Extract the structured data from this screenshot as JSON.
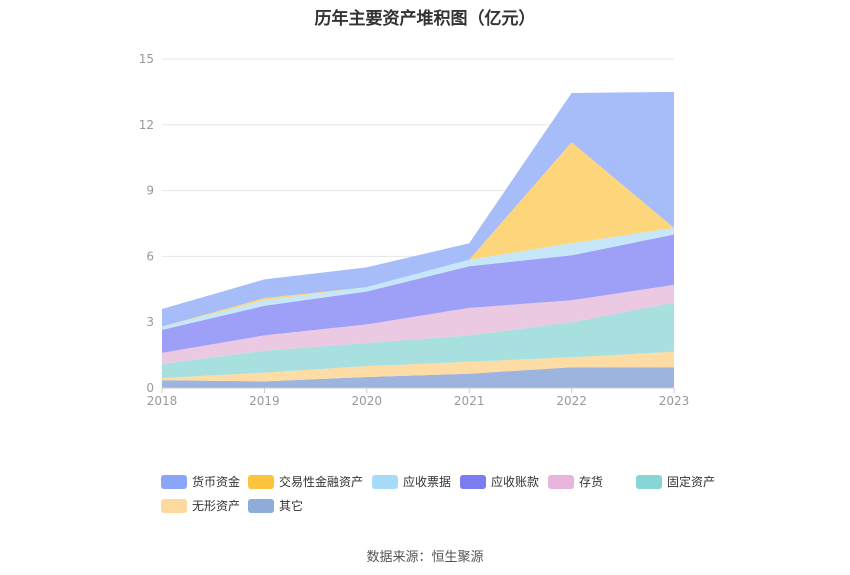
{
  "chart_data": {
    "type": "area",
    "stacked": true,
    "title": "历年主要资产堆积图（亿元）",
    "x": [
      "2018",
      "2019",
      "2020",
      "2021",
      "2022",
      "2023"
    ],
    "ylim": [
      0,
      15
    ],
    "yticks": [
      0,
      3,
      6,
      9,
      12,
      15
    ],
    "grid": true,
    "legend_position": "bottom",
    "series": [
      {
        "name": "其它",
        "color": "#9db4de",
        "values": [
          0.35,
          0.3,
          0.5,
          0.65,
          0.95,
          0.95
        ]
      },
      {
        "name": "无形资产",
        "color": "#fddca6",
        "values": [
          0.1,
          0.4,
          0.5,
          0.55,
          0.45,
          0.7
        ]
      },
      {
        "name": "固定资产",
        "color": "#a8e0df",
        "values": [
          0.65,
          1.0,
          1.05,
          1.2,
          1.6,
          2.25
        ]
      },
      {
        "name": "存货",
        "color": "#ebc9e3",
        "values": [
          0.5,
          0.7,
          0.85,
          1.25,
          1.0,
          0.8
        ]
      },
      {
        "name": "应收账款",
        "color": "#9e9ff6",
        "values": [
          1.05,
          1.35,
          1.5,
          1.9,
          2.05,
          2.3
        ]
      },
      {
        "name": "应收票据",
        "color": "#c6e7f9",
        "values": [
          0.15,
          0.25,
          0.2,
          0.3,
          0.55,
          0.3
        ]
      },
      {
        "name": "交易性金融资产",
        "color": "#fdd67c",
        "values": [
          0.0,
          0.1,
          0.0,
          0.0,
          4.6,
          0.0
        ]
      },
      {
        "name": "货币资金",
        "color": "#a7bdfa",
        "values": [
          0.8,
          0.85,
          0.9,
          0.75,
          2.25,
          6.2
        ]
      }
    ],
    "legend_colors": {
      "货币资金": "#8aa6f8",
      "交易性金融资产": "#fcc43d",
      "应收票据": "#a6dcf8",
      "应收账款": "#7b7cf0",
      "存货": "#e8b5dd",
      "固定资产": "#87d6d5",
      "无形资产": "#fdd99d",
      "其它": "#8fabd9"
    },
    "legend_order": [
      "货币资金",
      "交易性金融资产",
      "应收票据",
      "应收账款",
      "存货",
      "固定资产",
      "无形资产",
      "其它"
    ]
  },
  "source": "数据来源：恒生聚源"
}
